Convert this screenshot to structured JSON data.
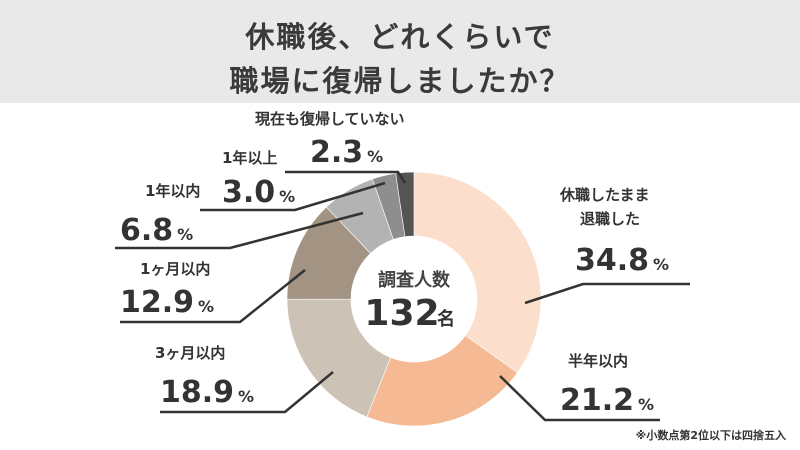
{
  "header": {
    "title_line1": "休職後、どれくらいで",
    "title_line2": "職場に復帰しましたか？"
  },
  "center": {
    "label": "調査人数",
    "value": "132",
    "unit": "名"
  },
  "note": "※小数点第2位以下は四捨五入",
  "chart_data": {
    "type": "pie",
    "donut": true,
    "start": "top, clockwise",
    "unit": "%",
    "slices": [
      {
        "label": "休職したまま退職した",
        "label_lines": [
          "休職したまま",
          "退職した"
        ],
        "value": 34.8,
        "color": "#fbdfcc"
      },
      {
        "label": "半年以内",
        "label_lines": [
          "半年以内"
        ],
        "value": 21.2,
        "color": "#f5b994"
      },
      {
        "label": "3ヶ月以内",
        "label_lines": [
          "3ヶ月以内"
        ],
        "value": 18.9,
        "color": "#cdc2b6"
      },
      {
        "label": "1ヶ月以内",
        "label_lines": [
          "1ヶ月以内"
        ],
        "value": 12.9,
        "color": "#a39382"
      },
      {
        "label": "1年以内",
        "label_lines": [
          "1年以内"
        ],
        "value": 6.8,
        "color": "#b3b3b3"
      },
      {
        "label": "1年以上",
        "label_lines": [
          "1年以上"
        ],
        "value": 3.0,
        "color": "#8e8e8e"
      },
      {
        "label": "現在も復帰していない",
        "label_lines": [
          "現在も復帰していない"
        ],
        "value": 2.3,
        "color": "#555555"
      }
    ]
  }
}
